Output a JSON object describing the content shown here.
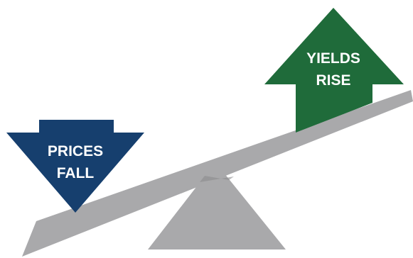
{
  "down_arrow": {
    "line1": "PRICES",
    "line2": "FALL",
    "color": "#163f6e"
  },
  "up_arrow": {
    "line1": "YIELDS",
    "line2": "RISE",
    "color": "#1f6b3a"
  },
  "seesaw": {
    "plank_color": "#a9a9ab",
    "fulcrum_color": "#a9a9ab",
    "overlap_color": "#8c8c8e"
  }
}
